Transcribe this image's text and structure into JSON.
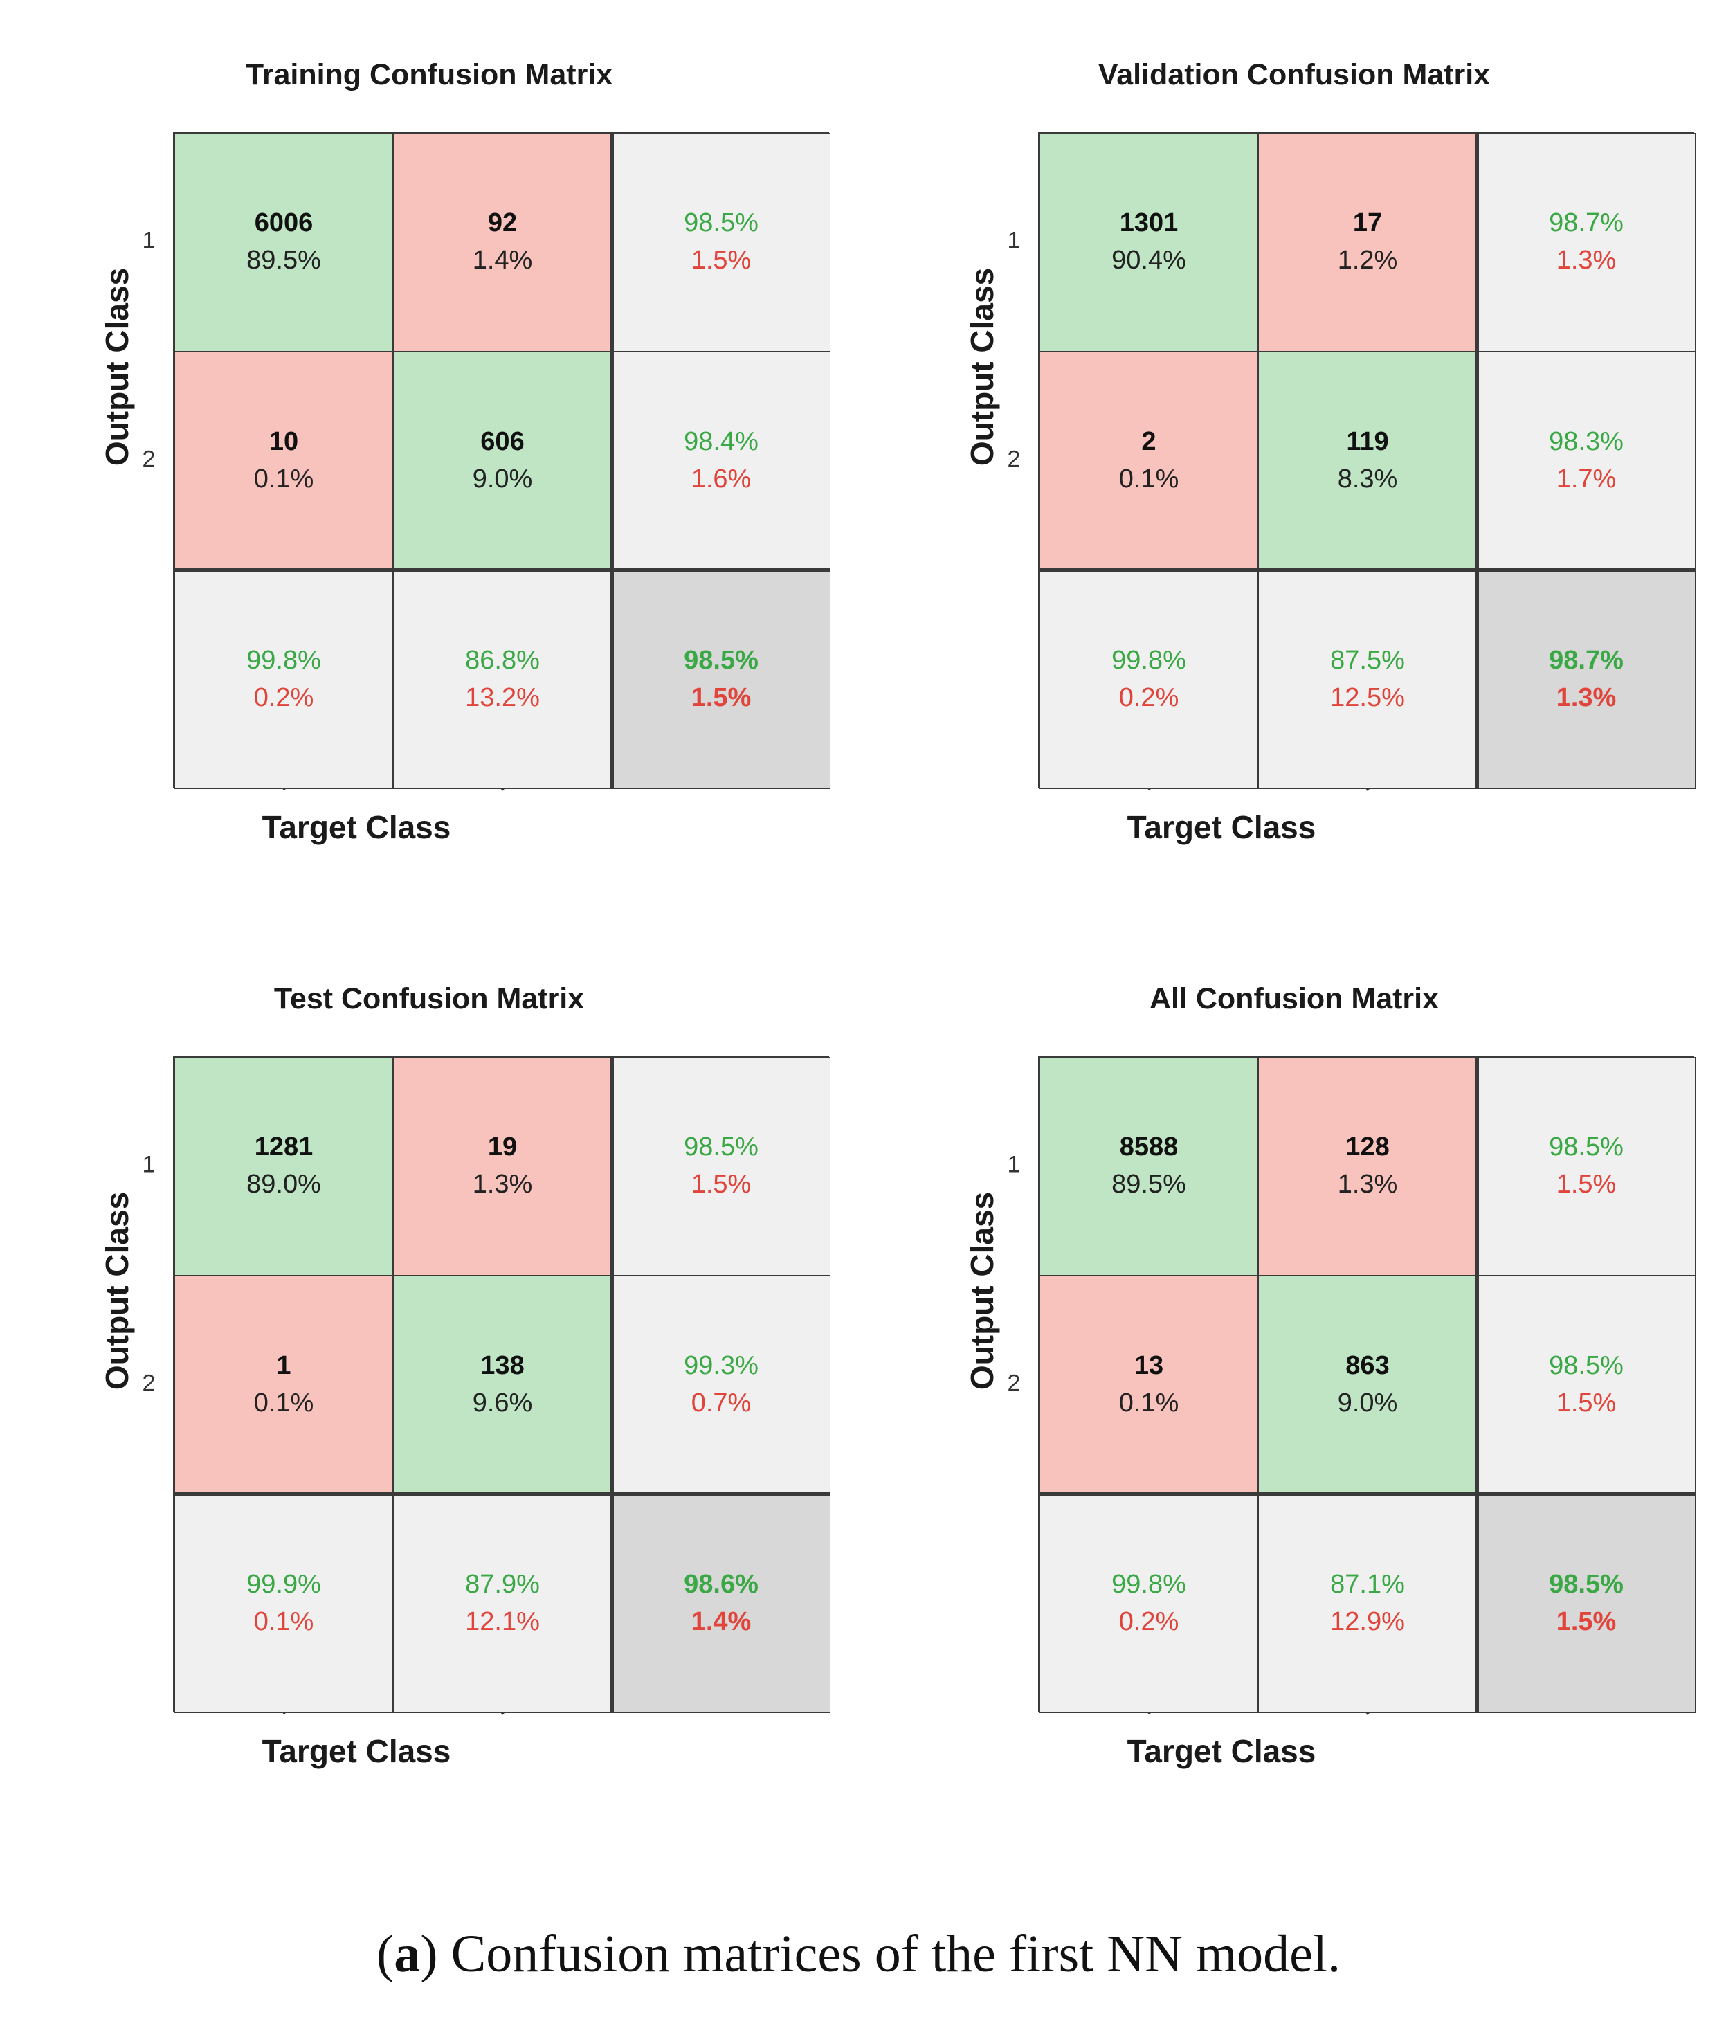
{
  "chart_data": [
    {
      "type": "table",
      "title": "Training Confusion Matrix",
      "xlabel": "Target Class",
      "ylabel": "Output Class",
      "classes": [
        "1",
        "2"
      ],
      "cells": [
        [
          {
            "count": "6006",
            "percent": "89.5%"
          },
          {
            "count": "92",
            "percent": "1.4%"
          }
        ],
        [
          {
            "count": "10",
            "percent": "0.1%"
          },
          {
            "count": "606",
            "percent": "9.0%"
          }
        ]
      ],
      "row_summary": [
        {
          "correct": "98.5%",
          "error": "1.5%"
        },
        {
          "correct": "98.4%",
          "error": "1.6%"
        }
      ],
      "col_summary": [
        {
          "correct": "99.8%",
          "error": "0.2%"
        },
        {
          "correct": "86.8%",
          "error": "13.2%"
        }
      ],
      "overall": {
        "correct": "98.5%",
        "error": "1.5%"
      }
    },
    {
      "type": "table",
      "title": "Validation Confusion Matrix",
      "xlabel": "Target Class",
      "ylabel": "Output Class",
      "classes": [
        "1",
        "2"
      ],
      "cells": [
        [
          {
            "count": "1301",
            "percent": "90.4%"
          },
          {
            "count": "17",
            "percent": "1.2%"
          }
        ],
        [
          {
            "count": "2",
            "percent": "0.1%"
          },
          {
            "count": "119",
            "percent": "8.3%"
          }
        ]
      ],
      "row_summary": [
        {
          "correct": "98.7%",
          "error": "1.3%"
        },
        {
          "correct": "98.3%",
          "error": "1.7%"
        }
      ],
      "col_summary": [
        {
          "correct": "99.8%",
          "error": "0.2%"
        },
        {
          "correct": "87.5%",
          "error": "12.5%"
        }
      ],
      "overall": {
        "correct": "98.7%",
        "error": "1.3%"
      }
    },
    {
      "type": "table",
      "title": "Test Confusion Matrix",
      "xlabel": "Target Class",
      "ylabel": "Output Class",
      "classes": [
        "1",
        "2"
      ],
      "cells": [
        [
          {
            "count": "1281",
            "percent": "89.0%"
          },
          {
            "count": "19",
            "percent": "1.3%"
          }
        ],
        [
          {
            "count": "1",
            "percent": "0.1%"
          },
          {
            "count": "138",
            "percent": "9.6%"
          }
        ]
      ],
      "row_summary": [
        {
          "correct": "98.5%",
          "error": "1.5%"
        },
        {
          "correct": "99.3%",
          "error": "0.7%"
        }
      ],
      "col_summary": [
        {
          "correct": "99.9%",
          "error": "0.1%"
        },
        {
          "correct": "87.9%",
          "error": "12.1%"
        }
      ],
      "overall": {
        "correct": "98.6%",
        "error": "1.4%"
      }
    },
    {
      "type": "table",
      "title": "All Confusion Matrix",
      "xlabel": "Target Class",
      "ylabel": "Output Class",
      "classes": [
        "1",
        "2"
      ],
      "cells": [
        [
          {
            "count": "8588",
            "percent": "89.5%"
          },
          {
            "count": "128",
            "percent": "1.3%"
          }
        ],
        [
          {
            "count": "13",
            "percent": "0.1%"
          },
          {
            "count": "863",
            "percent": "9.0%"
          }
        ]
      ],
      "row_summary": [
        {
          "correct": "98.5%",
          "error": "1.5%"
        },
        {
          "correct": "98.5%",
          "error": "1.5%"
        }
      ],
      "col_summary": [
        {
          "correct": "99.8%",
          "error": "0.2%"
        },
        {
          "correct": "87.1%",
          "error": "12.9%"
        }
      ],
      "overall": {
        "correct": "98.5%",
        "error": "1.5%"
      }
    }
  ],
  "caption": {
    "label": "a",
    "text": " Confusion matrices of the first NN model."
  },
  "colors": {
    "correct_cell": "#bfe5c5",
    "wrong_cell": "#f8c2bd",
    "summary_cell": "#f0f0f0",
    "overall_cell": "#d8d8d8",
    "green_text": "#3aa845",
    "red_text": "#e0443b"
  }
}
